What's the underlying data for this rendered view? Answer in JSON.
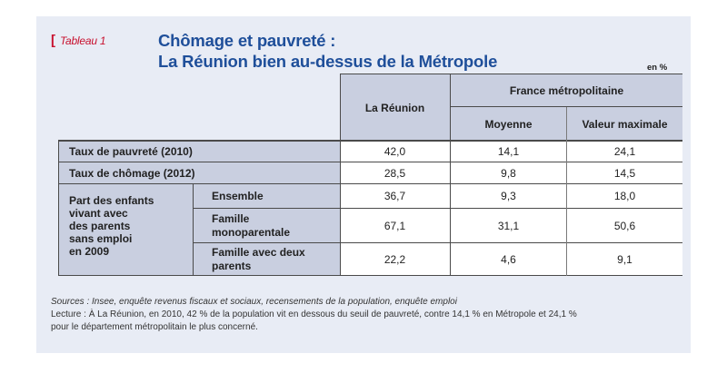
{
  "tag": {
    "bracket": "[",
    "label": "Tableau 1"
  },
  "title": {
    "line1": "Chômage et pauvreté :",
    "line2": "La Réunion bien au-dessus de la Métropole"
  },
  "unit": "en %",
  "table": {
    "headers": {
      "reunion": "La Réunion",
      "france": "France métropolitaine",
      "moyenne": "Moyenne",
      "valeur_max": "Valeur maximale"
    },
    "rows": [
      {
        "label": "Taux de pauvreté (2010)",
        "reunion": "42,0",
        "moyenne": "14,1",
        "valeur_max": "24,1"
      },
      {
        "label": "Taux de chômage (2012)",
        "reunion": "28,5",
        "moyenne": "9,8",
        "valeur_max": "14,5"
      }
    ],
    "group": {
      "label_lines": [
        "Part des enfants",
        "vivant avec",
        "des parents",
        "sans emploi",
        "en 2009"
      ],
      "subrows": [
        {
          "label_lines": [
            "Ensemble"
          ],
          "reunion": "36,7",
          "moyenne": "9,3",
          "valeur_max": "18,0"
        },
        {
          "label_lines": [
            "Famille",
            "monoparentale"
          ],
          "reunion": "67,1",
          "moyenne": "31,1",
          "valeur_max": "50,6"
        },
        {
          "label_lines": [
            "Famille avec deux",
            "parents"
          ],
          "reunion": "22,2",
          "moyenne": "4,6",
          "valeur_max": "9,1"
        }
      ]
    }
  },
  "notes": {
    "sources": "Sources : Insee, enquête revenus fiscaux et sociaux, recensements de la population, enquête emploi",
    "lecture_line1": "Lecture : À La Réunion, en 2010, 42 % de la population vit en dessous du seuil de pauvreté, contre 14,1 % en Métropole et 24,1 %",
    "lecture_line2": "pour le département métropolitain le plus concerné."
  },
  "colors": {
    "panel": "#e8ecf5",
    "header": "#c9cfe0",
    "title": "#1f4f9a",
    "tag": "#c8102e"
  }
}
